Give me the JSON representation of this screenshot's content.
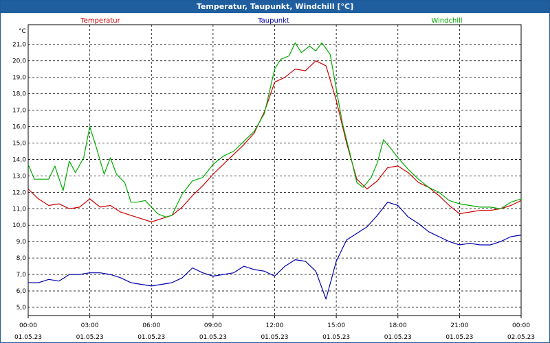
{
  "window": {
    "title": "Temperatur, Taupunkt, Windchill [°C]"
  },
  "colors": {
    "temperature": "#cc0000",
    "dewpoint": "#0000aa",
    "windchill": "#00aa00",
    "frame": "#1f5fa0",
    "grid": "#000000"
  },
  "chart_data": {
    "type": "line",
    "title": "Temperatur, Taupunkt, Windchill [°C]",
    "ylabel": "°C",
    "ylim": [
      4.5,
      22.2
    ],
    "yticks": [
      "5,0",
      "6,0",
      "7,0",
      "8,0",
      "9,0",
      "10,0",
      "11,0",
      "12,0",
      "13,0",
      "14,0",
      "15,0",
      "16,0",
      "17,0",
      "18,0",
      "19,0",
      "20,0",
      "21,0"
    ],
    "yvalues": [
      5,
      6,
      7,
      8,
      9,
      10,
      11,
      12,
      13,
      14,
      15,
      16,
      17,
      18,
      19,
      20,
      21
    ],
    "xlim": [
      0,
      24
    ],
    "xticks": [
      {
        "value": 0,
        "time": "00:00",
        "date": "01.05.23"
      },
      {
        "value": 3,
        "time": "03:00",
        "date": "01.05.23"
      },
      {
        "value": 6,
        "time": "06:00",
        "date": "01.05.23"
      },
      {
        "value": 9,
        "time": "09:00",
        "date": "01.05.23"
      },
      {
        "value": 12,
        "time": "12:00",
        "date": "01.05.23"
      },
      {
        "value": 15,
        "time": "15:00",
        "date": "01.05.23"
      },
      {
        "value": 18,
        "time": "18:00",
        "date": "01.05.23"
      },
      {
        "value": 21,
        "time": "21:00",
        "date": "01.05.23"
      },
      {
        "value": 24,
        "time": "00:00",
        "date": "02.05.23"
      }
    ],
    "grid": true,
    "series": [
      {
        "name": "Temperatur",
        "color": "#cc0000",
        "x": [
          0,
          0.5,
          1,
          1.5,
          2,
          2.5,
          3,
          3.5,
          4,
          4.5,
          5,
          5.5,
          6,
          6.5,
          7,
          7.5,
          8,
          8.5,
          9,
          9.5,
          10,
          10.5,
          11,
          11.5,
          12,
          12.5,
          13,
          13.5,
          14,
          14.5,
          15,
          15.5,
          16,
          16.5,
          17,
          17.5,
          18,
          18.5,
          19,
          19.5,
          20,
          20.5,
          21,
          21.5,
          22,
          22.5,
          23,
          23.5,
          24
        ],
        "values": [
          12.2,
          11.6,
          11.2,
          11.3,
          11,
          11.1,
          11.6,
          11.1,
          11.2,
          10.8,
          10.6,
          10.4,
          10.2,
          10.4,
          10.6,
          11.1,
          11.8,
          12.4,
          13.1,
          13.7,
          14.3,
          14.9,
          15.6,
          16.9,
          18.7,
          19,
          19.5,
          19.4,
          20,
          19.7,
          17.6,
          15,
          12.8,
          12.2,
          12.7,
          13.5,
          13.6,
          13.2,
          12.6,
          12.3,
          11.8,
          11.2,
          10.7,
          10.8,
          10.9,
          10.9,
          11,
          11.2,
          11.5
        ]
      },
      {
        "name": "Taupunkt",
        "color": "#0000aa",
        "x": [
          0,
          0.5,
          1,
          1.5,
          2,
          2.5,
          3,
          3.5,
          4,
          4.5,
          5,
          5.5,
          6,
          6.5,
          7,
          7.5,
          8,
          8.5,
          9,
          9.5,
          10,
          10.5,
          11,
          11.5,
          12,
          12.5,
          13,
          13.5,
          14,
          14.5,
          15,
          15.5,
          16,
          16.5,
          17,
          17.5,
          18,
          18.5,
          19,
          19.5,
          20,
          20.5,
          21,
          21.5,
          22,
          22.5,
          23,
          23.5,
          24
        ],
        "values": [
          6.5,
          6.5,
          6.7,
          6.6,
          7,
          7,
          7.1,
          7.1,
          7,
          6.8,
          6.5,
          6.4,
          6.3,
          6.4,
          6.5,
          6.8,
          7.4,
          7.1,
          6.9,
          7,
          7.1,
          7.5,
          7.3,
          7.2,
          6.9,
          7.5,
          7.9,
          7.8,
          7.2,
          5.5,
          7.8,
          9.1,
          9.5,
          9.9,
          10.6,
          11.4,
          11.2,
          10.5,
          10.1,
          9.6,
          9.3,
          9,
          8.8,
          8.9,
          8.8,
          8.8,
          9,
          9.3,
          9.4
        ]
      },
      {
        "name": "Windchill",
        "color": "#00aa00",
        "x": [
          0,
          0.3,
          0.7,
          1,
          1.3,
          1.7,
          2,
          2.3,
          2.7,
          3,
          3.3,
          3.7,
          4,
          4.3,
          4.7,
          5,
          5.3,
          5.7,
          6,
          6.3,
          6.7,
          7,
          7.5,
          8,
          8.5,
          9,
          9.5,
          10,
          10.5,
          11,
          11.5,
          12,
          12.3,
          12.7,
          13,
          13.3,
          13.7,
          14,
          14.3,
          14.7,
          15,
          15.3,
          15.7,
          16,
          16.3,
          16.7,
          17,
          17.3,
          17.7,
          18,
          18.5,
          19,
          19.5,
          20,
          20.5,
          21,
          21.5,
          22,
          22.5,
          23,
          23.5,
          24
        ],
        "values": [
          13.7,
          12.8,
          12.8,
          12.8,
          13.6,
          12.1,
          13.9,
          13.2,
          14.1,
          16,
          14.8,
          13.1,
          14.1,
          13.1,
          12.6,
          11.4,
          11.4,
          11.5,
          11.1,
          10.7,
          10.5,
          10.6,
          11.9,
          12.7,
          12.9,
          13.7,
          14.2,
          14.5,
          15.1,
          15.7,
          16.8,
          19.5,
          20.1,
          20.3,
          21.1,
          20.5,
          20.9,
          20.6,
          21.1,
          20.4,
          18.3,
          16.2,
          14.2,
          12.6,
          12.3,
          12.9,
          13.8,
          15.2,
          14.6,
          14.1,
          13.4,
          12.8,
          12.3,
          12,
          11.5,
          11.3,
          11.2,
          11.1,
          11.1,
          11,
          11.4,
          11.6
        ]
      }
    ]
  }
}
